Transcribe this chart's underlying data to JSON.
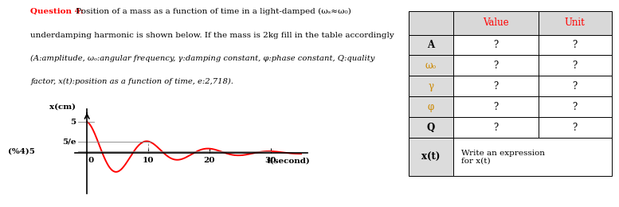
{
  "question_bold": "Question 4:",
  "line1_rest": " Position of a mass as a function of time in a light-damped (ωₛ≈ω₀)",
  "line2": "underdamping harmonic is shown below. If the mass is 2kg fill in the table accordingly",
  "line3_italic": "(A:amplitude, ωₒ:angular frequency, γ:damping constant, φ:phase constant, Q:quality",
  "line4_italic": "factor, x(t):position as a function of time, e:2,718).",
  "graph_ylabel": "x(cm)",
  "graph_xlabel": "t(second)",
  "y_label_5": "5",
  "y_label_5e": "5/e",
  "y_label_pct": "(%4)5",
  "x_label_0": "0",
  "xtick_labels": [
    "10",
    "20",
    "30"
  ],
  "xtick_vals": [
    10,
    20,
    30
  ],
  "table_col0_header": "",
  "table_col1_header": "Value",
  "table_col2_header": "Unit",
  "symbols": [
    "A",
    "ωₒ",
    "γ",
    "φ",
    "Q",
    "x(t)"
  ],
  "sym_bold": [
    true,
    false,
    false,
    false,
    true,
    true
  ],
  "sym_colors": [
    "#000000",
    "#CC8800",
    "#CC8800",
    "#CC8800",
    "#000000",
    "#000000"
  ],
  "question_color": "#FF0000",
  "header_color": "#FF0000",
  "text_color": "#000000",
  "curve_color": "#FF0000",
  "axis_color": "#000000",
  "bg_color": "#FFFFFF",
  "table_header_bg": "#D8D8D8",
  "table_sym_bg": "#DCDCDC",
  "table_val_bg": "#FFFFFF",
  "gamma": 0.1,
  "omega": 0.6283185307179586,
  "amplitude": 5.0,
  "xlim": [
    -2,
    36
  ],
  "ylim": [
    -6.5,
    7.0
  ]
}
